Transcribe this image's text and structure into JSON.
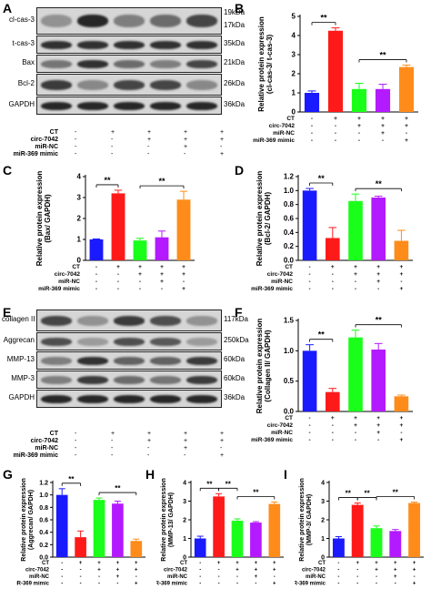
{
  "panels": {
    "A": "A",
    "B": "B",
    "C": "C",
    "D": "D",
    "E": "E",
    "F": "F",
    "G": "G",
    "H": "H",
    "I": "I"
  },
  "conditions": [
    "CT",
    "circ-7042",
    "miR-NC",
    "miR-369 mimic"
  ],
  "signs": [
    [
      "-",
      "+",
      "+",
      "+",
      "+"
    ],
    [
      "-",
      "-",
      "+",
      "+",
      "+"
    ],
    [
      "-",
      "-",
      "-",
      "+",
      "-"
    ],
    [
      "-",
      "-",
      "-",
      "-",
      "+"
    ]
  ],
  "blotA": [
    {
      "label": "cl-cas-3",
      "kda": [
        "19kDa",
        "17kDa"
      ]
    },
    {
      "label": "t-cas-3",
      "kda": [
        "35kDa"
      ]
    },
    {
      "label": "Bax",
      "kda": [
        "21kDa"
      ]
    },
    {
      "label": "Bcl-2",
      "kda": [
        "26kDa"
      ]
    },
    {
      "label": "GAPDH",
      "kda": [
        "36kDa"
      ]
    }
  ],
  "blotE": [
    {
      "label": "collagen II",
      "kda": [
        "117kDa"
      ]
    },
    {
      "label": "Aggrecan",
      "kda": [
        "250kDa"
      ]
    },
    {
      "label": "MMP-13",
      "kda": [
        "60kDa"
      ]
    },
    {
      "label": "MMP-3",
      "kda": [
        "60kDa"
      ]
    },
    {
      "label": "GAPDH",
      "kda": [
        "36kDa"
      ]
    }
  ],
  "colors": [
    "#1a1aff",
    "#ff1a1a",
    "#1aff1a",
    "#b31aff",
    "#ff8c1a"
  ],
  "sig": "**",
  "chart_data": [
    {
      "panel": "B",
      "type": "bar",
      "ylabel": "Relative protein expression\n(cl-cas-3/ t-cas-3)",
      "ylim": [
        0,
        5
      ],
      "ticks": [
        0,
        1,
        2,
        3,
        4,
        5
      ],
      "values": [
        1.0,
        4.25,
        1.2,
        1.2,
        2.35
      ],
      "errors": [
        0.1,
        0.15,
        0.3,
        0.25,
        0.1
      ],
      "sig": [
        [
          0,
          1
        ],
        [
          2,
          4
        ]
      ]
    },
    {
      "panel": "C",
      "type": "bar",
      "ylabel": "Relative protein expression\n(Bax/ GAPDH)",
      "ylim": [
        0,
        4
      ],
      "ticks": [
        0,
        1,
        2,
        3,
        4
      ],
      "values": [
        1.0,
        3.2,
        0.95,
        1.1,
        2.9
      ],
      "errors": [
        0.02,
        0.15,
        0.1,
        0.3,
        0.4
      ],
      "sig": [
        [
          0,
          1
        ],
        [
          2,
          4
        ]
      ]
    },
    {
      "panel": "D",
      "type": "bar",
      "ylabel": "Relative protein expression\n(Bcl-2/ GAPDH)",
      "ylim": [
        0,
        1.2
      ],
      "ticks": [
        0.0,
        0.2,
        0.4,
        0.6,
        0.8,
        1.0,
        1.2
      ],
      "values": [
        1.0,
        0.32,
        0.85,
        0.9,
        0.28
      ],
      "errors": [
        0.03,
        0.15,
        0.1,
        0.02,
        0.15
      ],
      "sig": [
        [
          0,
          1
        ],
        [
          2,
          4
        ]
      ]
    },
    {
      "panel": "F",
      "type": "bar",
      "ylabel": "Relative protein expression\n(Collagen II/ GAPDH)",
      "ylim": [
        0,
        1.5
      ],
      "ticks": [
        0.0,
        0.5,
        1.0,
        1.5
      ],
      "values": [
        1.0,
        0.32,
        1.22,
        1.02,
        0.25
      ],
      "errors": [
        0.1,
        0.06,
        0.12,
        0.1,
        0.02
      ],
      "sig": [
        [
          0,
          1
        ],
        [
          2,
          4
        ]
      ]
    },
    {
      "panel": "G",
      "type": "bar",
      "ylabel": "Relative protein expression\n(Aggrecan/ GAPDH)",
      "ylim": [
        0,
        1.2
      ],
      "ticks": [
        0.0,
        0.2,
        0.4,
        0.6,
        0.8,
        1.0,
        1.2
      ],
      "values": [
        1.0,
        0.32,
        0.92,
        0.86,
        0.26
      ],
      "errors": [
        0.1,
        0.1,
        0.03,
        0.04,
        0.03
      ],
      "sig": [
        [
          0,
          1
        ],
        [
          2,
          4
        ]
      ]
    },
    {
      "panel": "H",
      "type": "bar",
      "ylabel": "Relative protein expression\n(MMP-13/ GAPDH)",
      "ylim": [
        0,
        4
      ],
      "ticks": [
        0,
        1,
        2,
        3,
        4
      ],
      "values": [
        1.0,
        3.25,
        1.95,
        1.85,
        2.85
      ],
      "errors": [
        0.12,
        0.15,
        0.1,
        0.05,
        0.1
      ],
      "sig": [
        [
          0,
          1
        ],
        [
          1,
          2
        ],
        [
          2,
          4
        ]
      ]
    },
    {
      "panel": "I",
      "type": "bar",
      "ylabel": "Relative protein expression\n(MMP-3/ GAPDH)",
      "ylim": [
        0,
        4
      ],
      "ticks": [
        0,
        1,
        2,
        3,
        4
      ],
      "values": [
        1.0,
        2.8,
        1.55,
        1.4,
        2.9
      ],
      "errors": [
        0.1,
        0.1,
        0.12,
        0.08,
        0.05
      ],
      "sig": [
        [
          0,
          1
        ],
        [
          1,
          2
        ],
        [
          2,
          4
        ]
      ]
    }
  ]
}
